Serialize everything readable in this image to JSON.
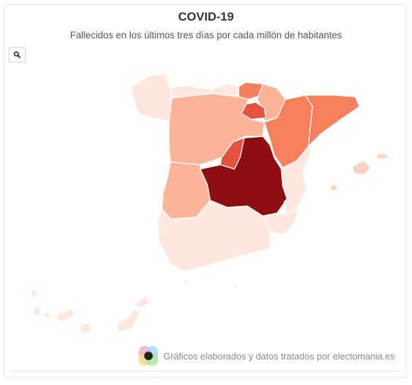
{
  "header": {
    "title": "COVID-19",
    "subtitle": "Fallecidos en los últimos tres días por cada millón de habitantes"
  },
  "toolbar": {
    "zoom_icon": "search-icon"
  },
  "footer": {
    "credit": "Gráficos elaborados y datos tratados por electomania.es",
    "logo_icon": "electomania-logo-icon"
  },
  "map": {
    "region": "Spain",
    "scale_colors": {
      "very_low": "#fde7de",
      "low": "#fcd3c1",
      "medium_low": "#fbb497",
      "medium": "#fa9a76",
      "medium_high": "#f6805b",
      "high": "#e5533e",
      "very_high": "#8e0d12"
    },
    "regions": [
      {
        "name": "Galicia",
        "level": "very_low"
      },
      {
        "name": "Asturias",
        "level": "very_low"
      },
      {
        "name": "Cantabria",
        "level": "very_low"
      },
      {
        "name": "País Vasco",
        "level": "medium_high"
      },
      {
        "name": "Navarra",
        "level": "medium_low"
      },
      {
        "name": "La Rioja",
        "level": "high"
      },
      {
        "name": "Aragón",
        "level": "medium_high"
      },
      {
        "name": "Cataluña",
        "level": "medium_high"
      },
      {
        "name": "Castilla y León",
        "level": "medium_low"
      },
      {
        "name": "Madrid",
        "level": "high"
      },
      {
        "name": "Castilla-La Mancha",
        "level": "very_high"
      },
      {
        "name": "Extremadura",
        "level": "medium_low"
      },
      {
        "name": "Comunidad Valenciana",
        "level": "very_low"
      },
      {
        "name": "Murcia",
        "level": "very_low"
      },
      {
        "name": "Andalucía",
        "level": "very_low"
      },
      {
        "name": "Islas Baleares",
        "level": "low"
      },
      {
        "name": "Canarias",
        "level": "very_low"
      },
      {
        "name": "Ceuta",
        "level": "very_low"
      },
      {
        "name": "Melilla",
        "level": "very_low"
      }
    ]
  }
}
